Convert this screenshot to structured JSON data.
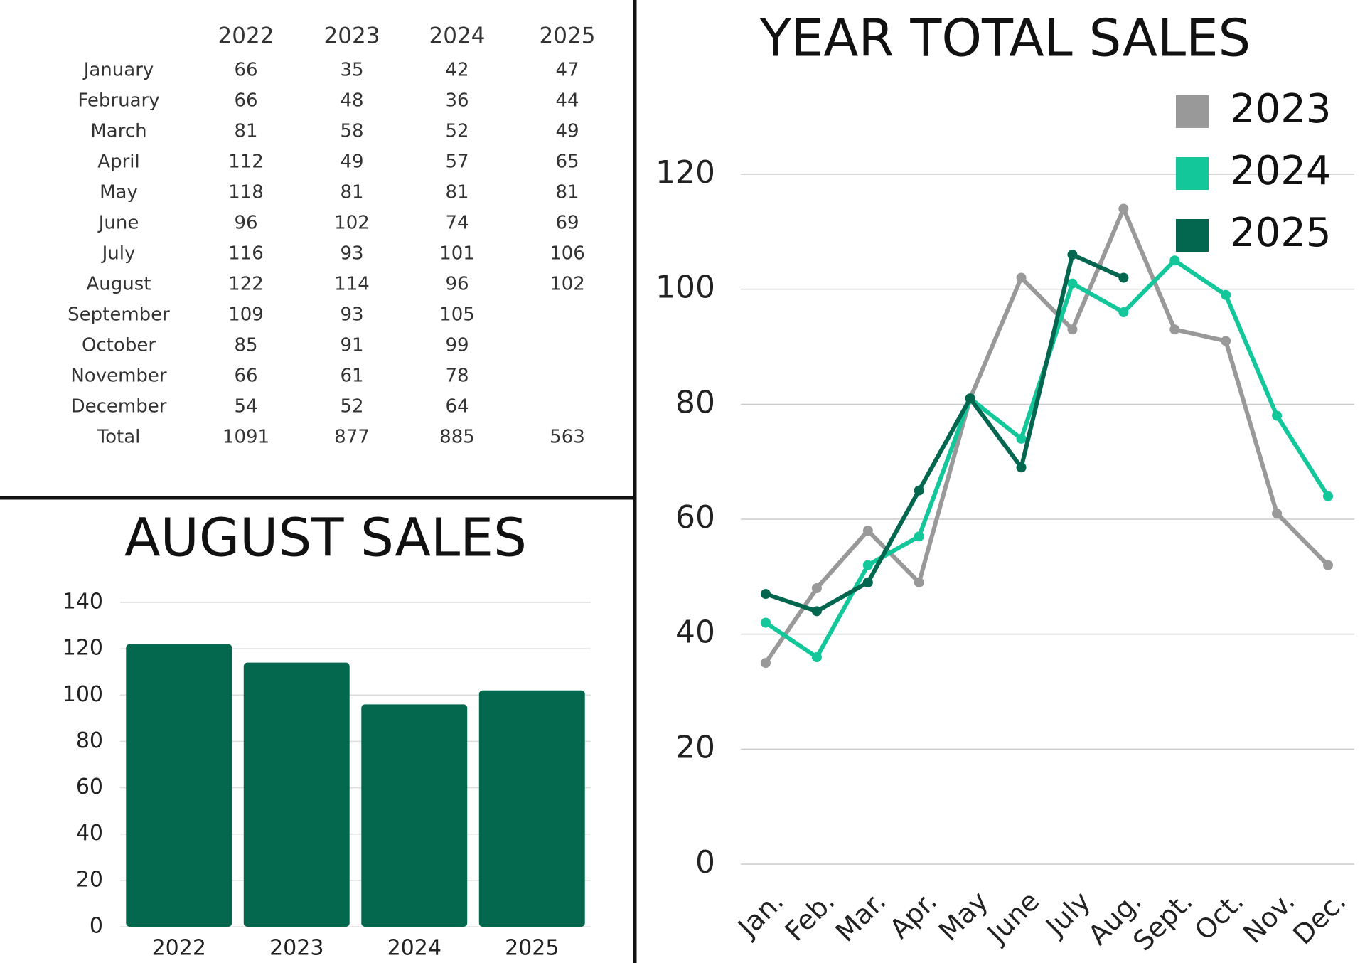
{
  "table": {
    "columns": [
      "2022",
      "2023",
      "2024",
      "2025"
    ],
    "rows": [
      [
        "January",
        66,
        35,
        42,
        47
      ],
      [
        "February",
        66,
        48,
        36,
        44
      ],
      [
        "March",
        81,
        58,
        52,
        49
      ],
      [
        "April",
        112,
        49,
        57,
        65
      ],
      [
        "May",
        118,
        81,
        81,
        81
      ],
      [
        "June",
        96,
        102,
        74,
        69
      ],
      [
        "July",
        116,
        93,
        101,
        106
      ],
      [
        "August",
        122,
        114,
        96,
        102
      ],
      [
        "September",
        109,
        93,
        105,
        null
      ],
      [
        "October",
        85,
        91,
        99,
        null
      ],
      [
        "November",
        66,
        61,
        78,
        null
      ],
      [
        "December",
        54,
        52,
        64,
        null
      ],
      [
        "Total",
        1091,
        877,
        885,
        563
      ]
    ]
  },
  "chart_data": [
    {
      "type": "bar",
      "title": "AUGUST SALES",
      "categories": [
        "2022",
        "2023",
        "2024",
        "2025"
      ],
      "values": [
        122,
        114,
        96,
        102
      ],
      "color": "#04684f",
      "ylim": [
        0,
        140
      ],
      "yticks": [
        0,
        20,
        40,
        60,
        80,
        100,
        120,
        140
      ],
      "grid": true
    },
    {
      "type": "line",
      "title": "YEAR TOTAL SALES",
      "categories": [
        "Jan.",
        "Feb.",
        "Mar.",
        "Apr.",
        "May",
        "June",
        "July",
        "Aug.",
        "Sept.",
        "Oct.",
        "Nov.",
        "Dec."
      ],
      "series": [
        {
          "name": "2023",
          "color": "#999999",
          "values": [
            35,
            48,
            58,
            49,
            81,
            102,
            93,
            114,
            93,
            91,
            61,
            52
          ]
        },
        {
          "name": "2024",
          "color": "#13c79a",
          "values": [
            42,
            36,
            52,
            57,
            81,
            74,
            101,
            96,
            105,
            99,
            78,
            64
          ]
        },
        {
          "name": "2025",
          "color": "#03664f",
          "values": [
            47,
            44,
            49,
            65,
            81,
            69,
            106,
            102,
            null,
            null,
            null,
            null
          ]
        }
      ],
      "ylim": [
        0,
        120
      ],
      "yticks": [
        0,
        20,
        40,
        60,
        80,
        100,
        120
      ],
      "grid": true,
      "legend": "top-right"
    }
  ]
}
